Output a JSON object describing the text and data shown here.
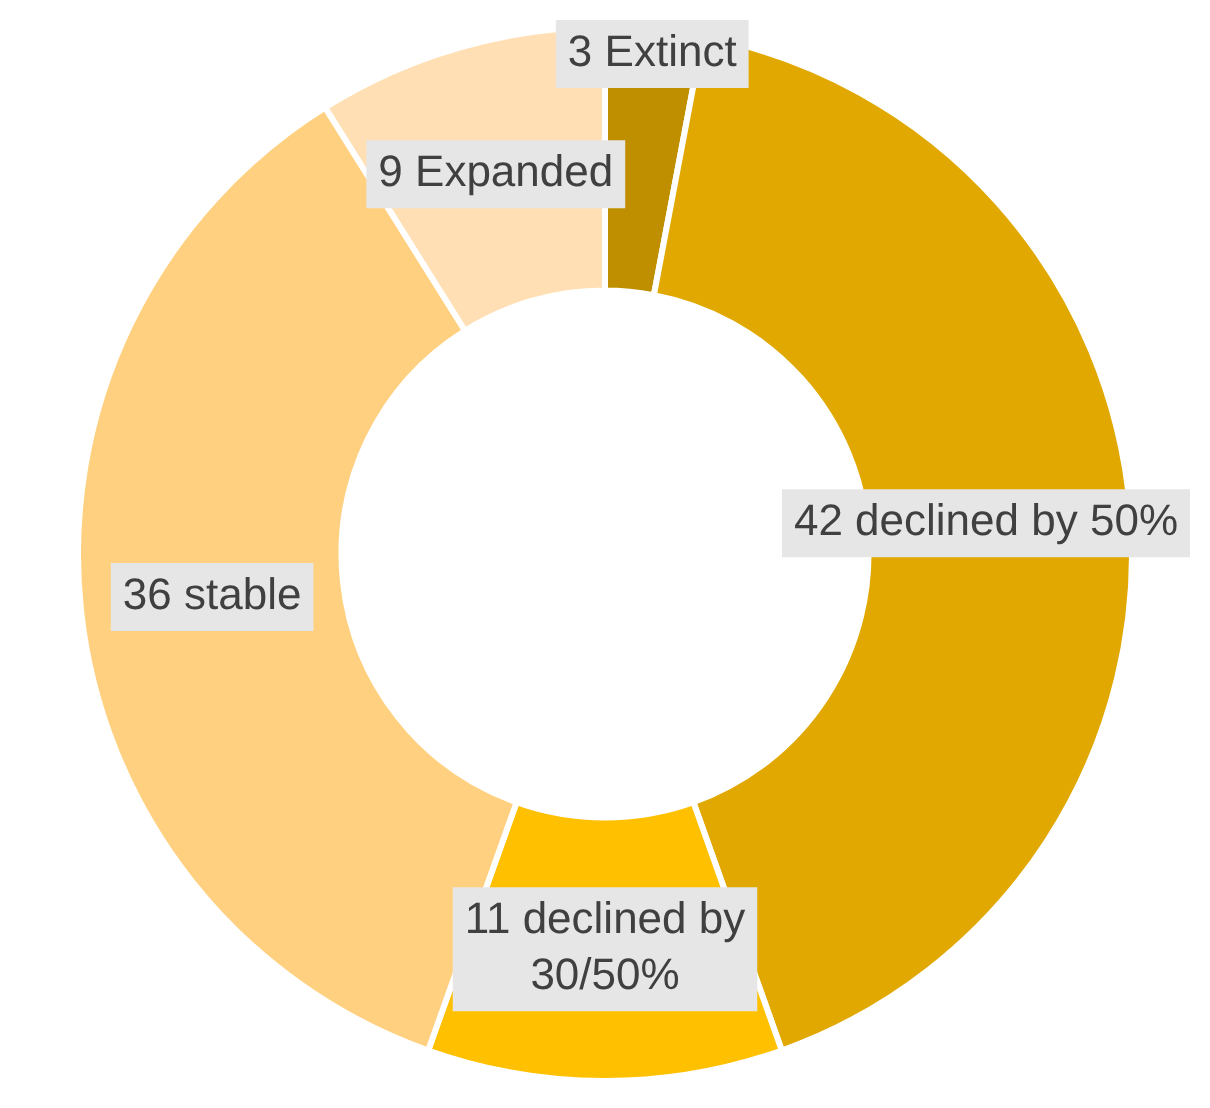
{
  "chart_data": {
    "type": "donut",
    "categories": [
      "Extinct",
      "declined by 50%",
      "declined by 30/50%",
      "stable",
      "Expanded"
    ],
    "values": [
      3,
      42,
      11,
      36,
      9
    ],
    "colors": [
      "#bf8f00",
      "#e0a800",
      "#ffc000",
      "#ffd07f",
      "#ffdfb3"
    ],
    "data_labels": true
  }
}
